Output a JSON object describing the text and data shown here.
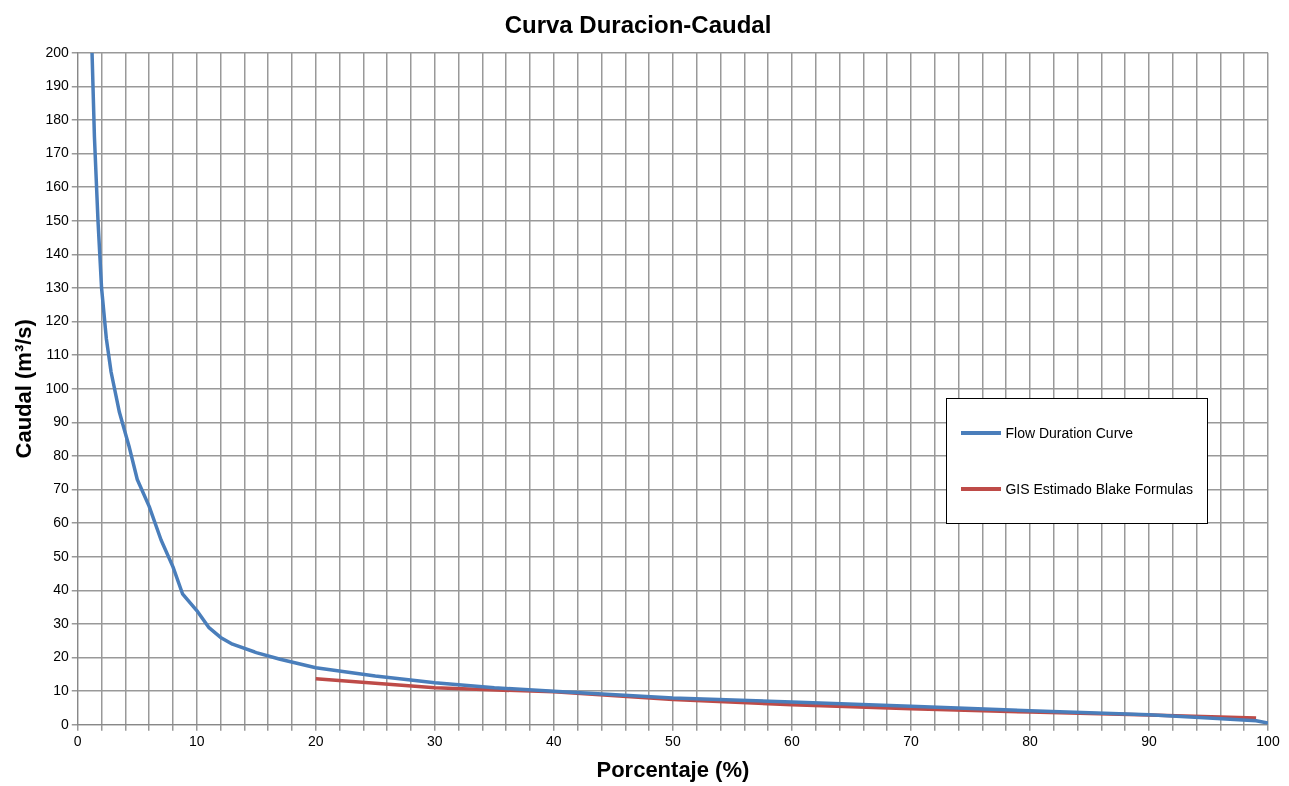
{
  "chart_data": {
    "type": "line",
    "title": "Curva Duracion-Caudal",
    "xlabel": "Porcentaje (%)",
    "ylabel": "Caudal (m³/s)",
    "xlim": [
      0,
      100
    ],
    "ylim": [
      0,
      200
    ],
    "xticks": [
      0,
      {
        "value": 2,
        "label": null
      },
      {
        "value": 4,
        "label": null
      },
      {
        "value": 6,
        "label": null
      },
      {
        "value": 8,
        "label": null
      },
      10,
      {
        "value": 12,
        "label": null
      },
      {
        "value": 14,
        "label": null
      },
      {
        "value": 16,
        "label": null
      },
      {
        "value": 18,
        "label": null
      },
      20,
      {
        "value": 22,
        "label": null
      },
      {
        "value": 24,
        "label": null
      },
      {
        "value": 26,
        "label": null
      },
      {
        "value": 28,
        "label": null
      },
      30,
      {
        "value": 32,
        "label": null
      },
      {
        "value": 34,
        "label": null
      },
      {
        "value": 36,
        "label": null
      },
      {
        "value": 38,
        "label": null
      },
      40,
      {
        "value": 42,
        "label": null
      },
      {
        "value": 44,
        "label": null
      },
      {
        "value": 46,
        "label": null
      },
      {
        "value": 48,
        "label": null
      },
      50,
      {
        "value": 52,
        "label": null
      },
      {
        "value": 54,
        "label": null
      },
      {
        "value": 56,
        "label": null
      },
      {
        "value": 58,
        "label": null
      },
      60,
      {
        "value": 62,
        "label": null
      },
      {
        "value": 64,
        "label": null
      },
      {
        "value": 66,
        "label": null
      },
      {
        "value": 68,
        "label": null
      },
      70,
      {
        "value": 72,
        "label": null
      },
      {
        "value": 74,
        "label": null
      },
      {
        "value": 76,
        "label": null
      },
      {
        "value": 78,
        "label": null
      },
      80,
      {
        "value": 82,
        "label": null
      },
      {
        "value": 84,
        "label": null
      },
      {
        "value": 86,
        "label": null
      },
      {
        "value": 88,
        "label": null
      },
      90,
      {
        "value": 92,
        "label": null
      },
      {
        "value": 94,
        "label": null
      },
      {
        "value": 96,
        "label": null
      },
      {
        "value": 98,
        "label": null
      },
      100
    ],
    "yticks": [
      0,
      10,
      20,
      30,
      40,
      50,
      60,
      70,
      80,
      90,
      100,
      110,
      120,
      130,
      140,
      150,
      160,
      170,
      180,
      190,
      200
    ],
    "grid": true,
    "legend": "right",
    "marker": "none",
    "line_style": "solid",
    "series": [
      {
        "name": "Flow Duration Curve",
        "color": "#4a7ebb",
        "x": [
          1.2,
          1.4,
          1.7,
          2.0,
          2.4,
          2.8,
          3.5,
          4.3,
          5,
          6,
          7,
          8,
          8.8,
          10,
          11,
          12,
          13,
          15,
          17,
          20,
          25,
          30,
          35,
          40,
          50,
          60,
          70,
          80,
          90,
          95,
          99,
          100
        ],
        "values": [
          200,
          175,
          150,
          130,
          115,
          105,
          93,
          83,
          73,
          65,
          55,
          47,
          39,
          34,
          29,
          26,
          24,
          21.5,
          19.5,
          17,
          14.5,
          12.5,
          11,
          10,
          8,
          6.8,
          5.5,
          4.2,
          3,
          2,
          1.2,
          0.5
        ]
      },
      {
        "name": "GIS Estimado Blake Formulas",
        "color": "#be4b48",
        "x": [
          20,
          30,
          40,
          50,
          60,
          70,
          80,
          90,
          99
        ],
        "values": [
          13.7,
          11,
          9.8,
          7.5,
          6,
          4.8,
          3.8,
          2.9,
          2
        ]
      }
    ]
  }
}
